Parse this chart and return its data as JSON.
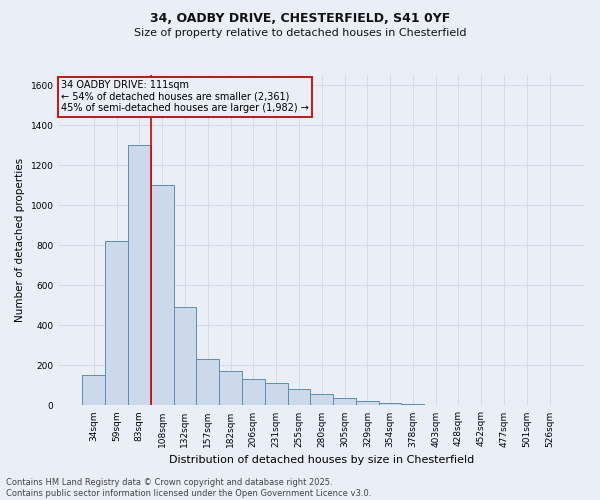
{
  "title_line1": "34, OADBY DRIVE, CHESTERFIELD, S41 0YF",
  "title_line2": "Size of property relative to detached houses in Chesterfield",
  "xlabel": "Distribution of detached houses by size in Chesterfield",
  "ylabel": "Number of detached properties",
  "footer_line1": "Contains HM Land Registry data © Crown copyright and database right 2025.",
  "footer_line2": "Contains public sector information licensed under the Open Government Licence v3.0.",
  "annotation_line1": "34 OADBY DRIVE: 111sqm",
  "annotation_line2": "← 54% of detached houses are smaller (2,361)",
  "annotation_line3": "45% of semi-detached houses are larger (1,982) →",
  "categories": [
    "34sqm",
    "59sqm",
    "83sqm",
    "108sqm",
    "132sqm",
    "157sqm",
    "182sqm",
    "206sqm",
    "231sqm",
    "255sqm",
    "280sqm",
    "305sqm",
    "329sqm",
    "354sqm",
    "378sqm",
    "403sqm",
    "428sqm",
    "452sqm",
    "477sqm",
    "501sqm",
    "526sqm"
  ],
  "values": [
    150,
    820,
    1300,
    1100,
    490,
    230,
    170,
    130,
    110,
    80,
    55,
    35,
    20,
    10,
    5,
    3,
    2,
    1,
    1,
    1,
    1
  ],
  "bar_color": "#ccd9ea",
  "bar_edge_color": "#5b8db8",
  "vline_color": "#cc0000",
  "vline_pos": 2.5,
  "ylim_max": 1650,
  "yticks": [
    0,
    200,
    400,
    600,
    800,
    1000,
    1200,
    1400,
    1600
  ],
  "grid_color": "#d0d8e4",
  "bg_color": "#eaeff7",
  "annotation_box_edgecolor": "#cc0000",
  "title1_fontsize": 9,
  "title2_fontsize": 8,
  "ylabel_fontsize": 7.5,
  "xlabel_fontsize": 8,
  "tick_fontsize": 6.5,
  "footer_fontsize": 6,
  "annotation_fontsize": 7
}
